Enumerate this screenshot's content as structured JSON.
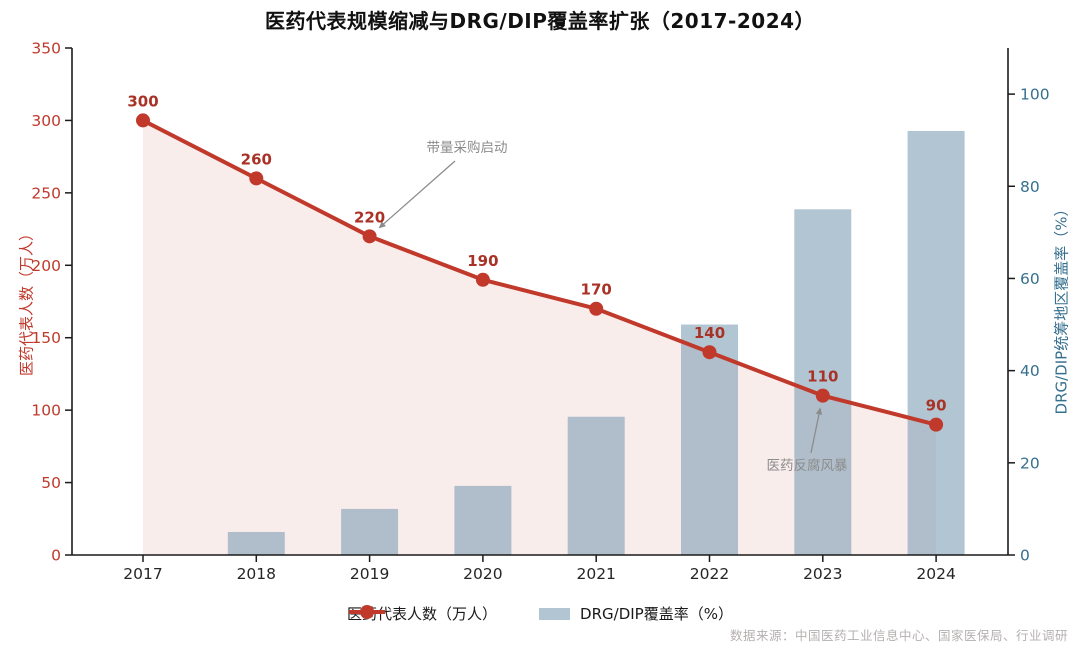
{
  "title": "医药代表规模缩减与DRG/DIP覆盖率扩张（2017-2024）",
  "source": "数据来源：中国医药工业信息中心、国家医保局、行业调研",
  "colors": {
    "line": "#c0392b",
    "marker": "#c0392b",
    "value_label": "#a93226",
    "left_axis": "#c0392b",
    "right_axis": "#36708f",
    "bar": "#7f9fb6",
    "bar_opacity": "0.6",
    "bar_legend": "#b2c5d3",
    "area_fill": "rgba(192,57,43,0.09)",
    "annotation": "#8c8c8c",
    "axis_line": "#1a1a1a",
    "x_tick_label": "#262626",
    "source_text": "#b5b0b0",
    "title_text": "#111111"
  },
  "chart_data": {
    "type": "combo-line-bar",
    "title": "医药代表规模缩减与DRG/DIP覆盖率扩张（2017-2024）",
    "categories": [
      "2017",
      "2018",
      "2019",
      "2020",
      "2021",
      "2022",
      "2023",
      "2024"
    ],
    "series": [
      {
        "name": "医药代表人数（万人）",
        "type": "line",
        "axis": "left",
        "values": [
          300,
          260,
          220,
          190,
          170,
          140,
          110,
          90
        ],
        "point_labels": [
          "300",
          "260",
          "220",
          "190",
          "170",
          "140",
          "110",
          "90"
        ]
      },
      {
        "name": "DRG/DIP覆盖率（%）",
        "type": "bar",
        "axis": "right",
        "values": [
          0,
          5,
          10,
          15,
          30,
          50,
          75,
          92
        ]
      }
    ],
    "left_axis": {
      "label": "医药代表人数（万人）",
      "min": 0,
      "max": 350,
      "ticks": [
        0,
        50,
        100,
        150,
        200,
        250,
        300,
        350
      ]
    },
    "right_axis": {
      "label": "DRG/DIP统筹地区覆盖率（%）",
      "min": 0,
      "max": 110,
      "ticks": [
        0,
        20,
        40,
        60,
        80,
        100
      ]
    },
    "annotations": [
      {
        "text": "带量采购启动",
        "year": "2019"
      },
      {
        "text": "医药反腐风暴",
        "year": "2023"
      }
    ],
    "legend_position": "bottom-center",
    "grid": false,
    "area_fill_under_line": true
  },
  "legend": {
    "items": [
      {
        "label": "医药代表人数（万人）",
        "swatch": "line"
      },
      {
        "label": "DRG/DIP覆盖率（%）",
        "swatch": "bar"
      }
    ]
  }
}
